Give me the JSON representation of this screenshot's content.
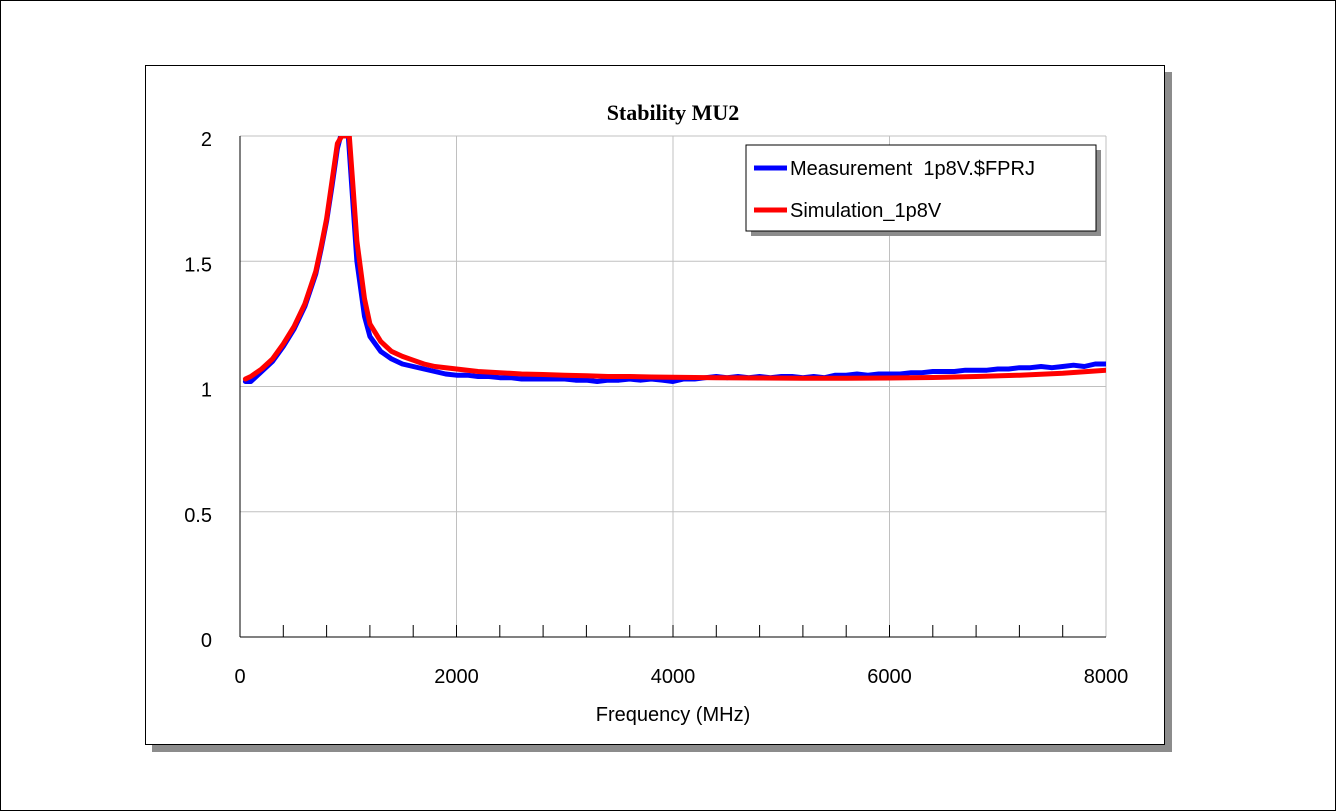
{
  "chart_data": {
    "type": "line",
    "title": "Stability MU2",
    "xlabel": "Frequency (MHz)",
    "ylabel": "",
    "xlim": [
      0,
      8000
    ],
    "ylim": [
      0,
      2
    ],
    "x_ticks": [
      0,
      2000,
      4000,
      6000,
      8000
    ],
    "x_tick_labels": [
      "0",
      "2000",
      "4000",
      "6000",
      "8000"
    ],
    "x_minor_step": 400,
    "y_ticks": [
      0,
      0.5,
      1,
      1.5,
      2
    ],
    "y_tick_labels": [
      "0",
      "0.5",
      "1",
      "1.5",
      "2"
    ],
    "grid": true,
    "legend_position": "top-right",
    "series": [
      {
        "name": "Measurement  1p8V.$FPRJ",
        "color": "#0000ff",
        "x": [
          50,
          100,
          200,
          300,
          400,
          500,
          600,
          700,
          750,
          800,
          850,
          900,
          930,
          960,
          1000,
          1040,
          1080,
          1150,
          1200,
          1300,
          1400,
          1500,
          1600,
          1700,
          1800,
          1900,
          2000,
          2100,
          2200,
          2300,
          2400,
          2500,
          2600,
          2700,
          2800,
          2900,
          3000,
          3100,
          3200,
          3300,
          3400,
          3500,
          3600,
          3700,
          3800,
          3900,
          4000,
          4100,
          4200,
          4300,
          4400,
          4500,
          4600,
          4700,
          4800,
          4900,
          5000,
          5100,
          5200,
          5300,
          5400,
          5500,
          5600,
          5700,
          5800,
          5900,
          6000,
          6100,
          6200,
          6300,
          6400,
          6500,
          6600,
          6700,
          6800,
          6900,
          7000,
          7100,
          7200,
          7300,
          7400,
          7500,
          7600,
          7700,
          7800,
          7900,
          8000
        ],
        "y": [
          1.02,
          1.02,
          1.06,
          1.1,
          1.16,
          1.23,
          1.32,
          1.45,
          1.55,
          1.66,
          1.8,
          1.95,
          2.0,
          2.0,
          2.0,
          1.75,
          1.5,
          1.28,
          1.2,
          1.14,
          1.11,
          1.09,
          1.08,
          1.07,
          1.06,
          1.05,
          1.045,
          1.045,
          1.04,
          1.04,
          1.035,
          1.035,
          1.03,
          1.03,
          1.03,
          1.03,
          1.03,
          1.025,
          1.025,
          1.02,
          1.025,
          1.025,
          1.03,
          1.025,
          1.03,
          1.025,
          1.02,
          1.03,
          1.03,
          1.035,
          1.04,
          1.035,
          1.04,
          1.035,
          1.04,
          1.035,
          1.04,
          1.04,
          1.035,
          1.04,
          1.035,
          1.045,
          1.045,
          1.05,
          1.045,
          1.05,
          1.05,
          1.05,
          1.055,
          1.055,
          1.06,
          1.06,
          1.06,
          1.065,
          1.065,
          1.065,
          1.07,
          1.07,
          1.075,
          1.075,
          1.08,
          1.075,
          1.08,
          1.085,
          1.08,
          1.09,
          1.09
        ]
      },
      {
        "name": "Simulation_1p8V",
        "color": "#ff0000",
        "x": [
          50,
          100,
          200,
          300,
          400,
          500,
          600,
          700,
          750,
          800,
          850,
          900,
          940,
          980,
          1010,
          1040,
          1080,
          1150,
          1200,
          1300,
          1400,
          1500,
          1600,
          1700,
          1800,
          2000,
          2200,
          2400,
          2600,
          2800,
          3000,
          3200,
          3400,
          3600,
          3800,
          4000,
          4400,
          4800,
          5200,
          5600,
          6000,
          6400,
          6800,
          7200,
          7600,
          8000
        ],
        "y": [
          1.03,
          1.04,
          1.07,
          1.11,
          1.17,
          1.24,
          1.33,
          1.46,
          1.56,
          1.67,
          1.82,
          1.97,
          2.0,
          2.0,
          2.0,
          1.82,
          1.58,
          1.35,
          1.25,
          1.18,
          1.14,
          1.12,
          1.105,
          1.09,
          1.08,
          1.07,
          1.06,
          1.055,
          1.05,
          1.048,
          1.045,
          1.043,
          1.04,
          1.04,
          1.038,
          1.037,
          1.035,
          1.034,
          1.033,
          1.033,
          1.034,
          1.036,
          1.04,
          1.045,
          1.053,
          1.065
        ]
      }
    ]
  }
}
